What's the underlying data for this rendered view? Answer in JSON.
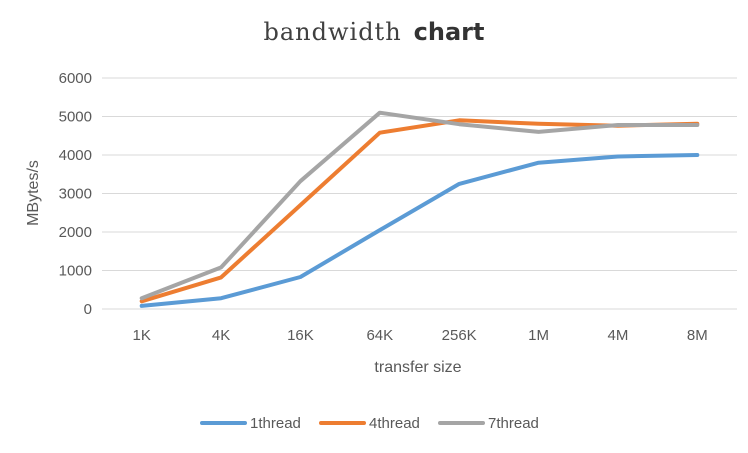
{
  "chart_data": {
    "type": "line",
    "title_part1": "bandwidth",
    "title_part2": "chart",
    "xlabel": "transfer size",
    "ylabel": "MBytes/s",
    "categories": [
      "1K",
      "4K",
      "16K",
      "64K",
      "256K",
      "1M",
      "4M",
      "8M"
    ],
    "ylim": [
      0,
      6000
    ],
    "yticks": [
      0,
      1000,
      2000,
      3000,
      4000,
      5000,
      6000
    ],
    "grid": true,
    "legend_position": "bottom",
    "series": [
      {
        "name": "1thread",
        "color": "#5B9BD5",
        "values": [
          80,
          280,
          830,
          2050,
          3250,
          3800,
          3960,
          4000
        ]
      },
      {
        "name": "4thread",
        "color": "#ED7D31",
        "values": [
          200,
          820,
          2700,
          4580,
          4900,
          4810,
          4760,
          4810
        ]
      },
      {
        "name": "7thread",
        "color": "#A5A5A5",
        "values": [
          280,
          1080,
          3320,
          5100,
          4800,
          4600,
          4780,
          4780
        ]
      }
    ]
  }
}
